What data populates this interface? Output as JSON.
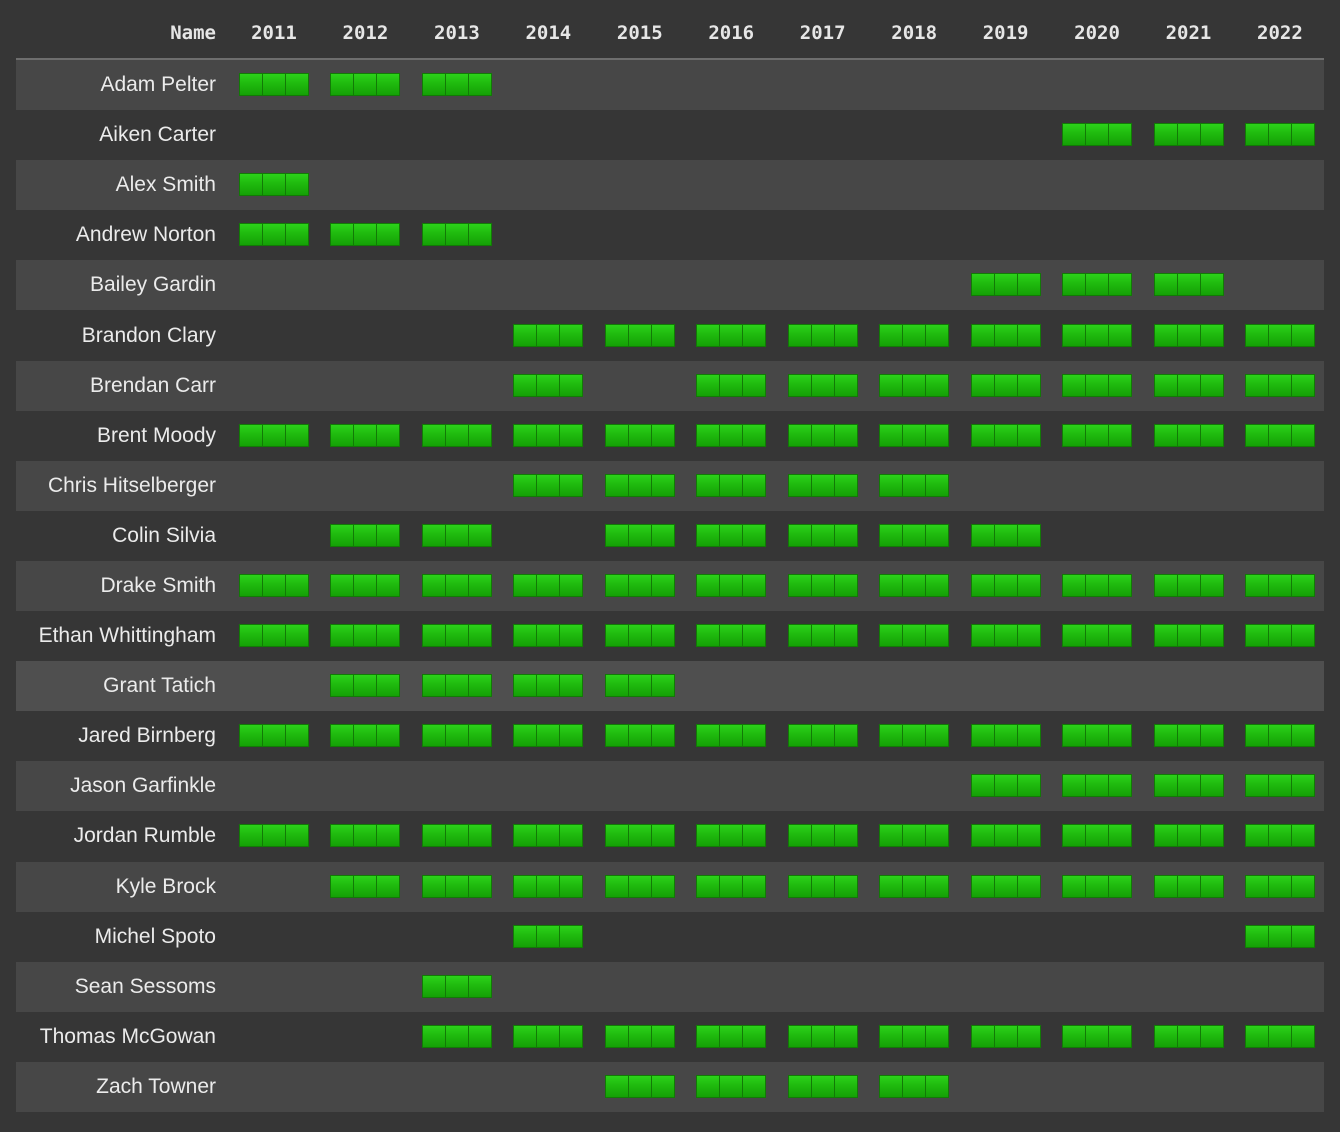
{
  "header": {
    "name_label": "Name",
    "years": [
      "2011",
      "2012",
      "2013",
      "2014",
      "2015",
      "2016",
      "2017",
      "2018",
      "2019",
      "2020",
      "2021",
      "2022"
    ]
  },
  "colors": {
    "background": "#363636",
    "row_alt": "#474747",
    "row_highlight": "#4f4f4f",
    "bar_green": "#1fba0e",
    "bar_border": "#127a06",
    "text": "#ebebeb"
  },
  "marker": {
    "segments": 3,
    "icon": "green-roster-bar-icon"
  },
  "rows": [
    {
      "name": "Adam Pelter",
      "years": [
        "2011",
        "2012",
        "2013"
      ]
    },
    {
      "name": "Aiken Carter",
      "years": [
        "2020",
        "2021",
        "2022"
      ]
    },
    {
      "name": "Alex Smith",
      "years": [
        "2011"
      ]
    },
    {
      "name": "Andrew Norton",
      "years": [
        "2011",
        "2012",
        "2013"
      ]
    },
    {
      "name": "Bailey Gardin",
      "years": [
        "2019",
        "2020",
        "2021"
      ]
    },
    {
      "name": "Brandon Clary",
      "years": [
        "2014",
        "2015",
        "2016",
        "2017",
        "2018",
        "2019",
        "2020",
        "2021",
        "2022"
      ]
    },
    {
      "name": "Brendan Carr",
      "years": [
        "2014",
        "2016",
        "2017",
        "2018",
        "2019",
        "2020",
        "2021",
        "2022"
      ]
    },
    {
      "name": "Brent Moody",
      "years": [
        "2011",
        "2012",
        "2013",
        "2014",
        "2015",
        "2016",
        "2017",
        "2018",
        "2019",
        "2020",
        "2021",
        "2022"
      ]
    },
    {
      "name": "Chris Hitselberger",
      "years": [
        "2014",
        "2015",
        "2016",
        "2017",
        "2018"
      ]
    },
    {
      "name": "Colin Silvia",
      "years": [
        "2012",
        "2013",
        "2015",
        "2016",
        "2017",
        "2018",
        "2019"
      ]
    },
    {
      "name": "Drake Smith",
      "years": [
        "2011",
        "2012",
        "2013",
        "2014",
        "2015",
        "2016",
        "2017",
        "2018",
        "2019",
        "2020",
        "2021",
        "2022"
      ]
    },
    {
      "name": "Ethan Whittingham",
      "years": [
        "2011",
        "2012",
        "2013",
        "2014",
        "2015",
        "2016",
        "2017",
        "2018",
        "2019",
        "2020",
        "2021",
        "2022"
      ]
    },
    {
      "name": "Grant Tatich",
      "years": [
        "2012",
        "2013",
        "2014",
        "2015"
      ]
    },
    {
      "name": "Jared Birnberg",
      "years": [
        "2011",
        "2012",
        "2013",
        "2014",
        "2015",
        "2016",
        "2017",
        "2018",
        "2019",
        "2020",
        "2021",
        "2022"
      ]
    },
    {
      "name": "Jason Garfinkle",
      "years": [
        "2019",
        "2020",
        "2021",
        "2022"
      ]
    },
    {
      "name": "Jordan Rumble",
      "years": [
        "2011",
        "2012",
        "2013",
        "2014",
        "2015",
        "2016",
        "2017",
        "2018",
        "2019",
        "2020",
        "2021",
        "2022"
      ]
    },
    {
      "name": "Kyle Brock",
      "years": [
        "2012",
        "2013",
        "2014",
        "2015",
        "2016",
        "2017",
        "2018",
        "2019",
        "2020",
        "2021",
        "2022"
      ]
    },
    {
      "name": "Michel Spoto",
      "years": [
        "2014",
        "2022"
      ]
    },
    {
      "name": "Sean Sessoms",
      "years": [
        "2013"
      ]
    },
    {
      "name": "Thomas McGowan",
      "years": [
        "2013",
        "2014",
        "2015",
        "2016",
        "2017",
        "2018",
        "2019",
        "2020",
        "2021",
        "2022"
      ]
    },
    {
      "name": "Zach Towner",
      "years": [
        "2015",
        "2016",
        "2017",
        "2018"
      ]
    }
  ]
}
